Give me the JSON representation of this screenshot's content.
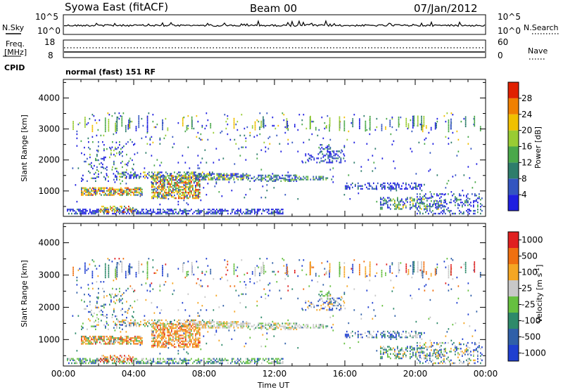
{
  "header": {
    "title": "Syowa East (fitACF)",
    "beam": "Beam 00",
    "date": "07/Jan/2012"
  },
  "status_panels": {
    "nsky_label": "N.Sky",
    "nsky_ticks": [
      "10^5",
      "10^0"
    ],
    "nsearch_label": "N.Search",
    "nsearch_ticks": [
      "10^5",
      "10^0"
    ],
    "freq_label_line1": "Freq.",
    "freq_label_line2": "[MHz]",
    "freq_ticks": [
      "18",
      "8"
    ],
    "nave_label": "Nave",
    "nave_ticks": [
      "60",
      "0"
    ],
    "cpid_label": "CPID",
    "cpid_value": "normal (fast) 151 RF"
  },
  "chart_data": [
    {
      "type": "heatmap",
      "name": "power",
      "ylabel": "Slant Range [km]",
      "yticks": [
        "1000",
        "2000",
        "3000",
        "4000"
      ],
      "ytick_values": [
        1000,
        2000,
        3000,
        4000
      ],
      "ylim": [
        180,
        4600
      ],
      "xlim": [
        0,
        24
      ],
      "colorbar": {
        "label": "Power [dB]",
        "ticks": [
          "4",
          "8",
          "12",
          "16",
          "20",
          "24",
          "28"
        ],
        "tick_values": [
          4,
          8,
          12,
          16,
          20,
          24,
          28
        ],
        "range": [
          0,
          32
        ],
        "colors": [
          "#1f1fe0",
          "#3355c0",
          "#2e7d6b",
          "#4aa84a",
          "#99cc33",
          "#f0c000",
          "#f08000",
          "#e02000"
        ]
      }
    },
    {
      "type": "heatmap",
      "name": "velocity",
      "ylabel": "Slant Range [km]",
      "yticks": [
        "1000",
        "2000",
        "3000",
        "4000"
      ],
      "ytick_values": [
        1000,
        2000,
        3000,
        4000
      ],
      "ylim": [
        180,
        4600
      ],
      "xlim": [
        0,
        24
      ],
      "xlabel": "Time UT",
      "xticks": [
        "00:00",
        "04:00",
        "08:00",
        "12:00",
        "16:00",
        "20:00",
        "00:00"
      ],
      "xtick_values": [
        0,
        4,
        8,
        12,
        16,
        20,
        24
      ],
      "colorbar": {
        "label": "Velocity [m s",
        "label_sup": "-1",
        "label_end": "]",
        "ticks": [
          "1000",
          "500",
          "100",
          "25",
          "-25",
          "-100",
          "-500",
          "-1000"
        ],
        "colors": [
          "#1f3fd0",
          "#3060a8",
          "#2e8a6a",
          "#66c040",
          "#c8c8c8",
          "#f5a623",
          "#f07010",
          "#e02020"
        ]
      }
    }
  ]
}
